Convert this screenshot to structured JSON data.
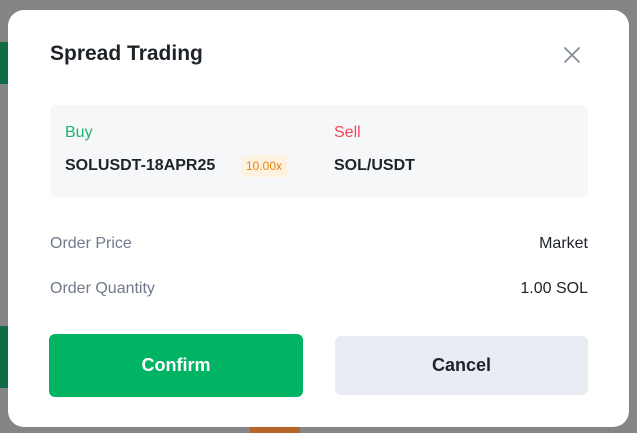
{
  "dialog": {
    "title": "Spread Trading",
    "close_icon": "close-icon",
    "buy": {
      "label": "Buy",
      "symbol": "SOLUSDT-18APR25",
      "leverage": "10.00x"
    },
    "sell": {
      "label": "Sell",
      "symbol": "SOL/USDT"
    },
    "rows": [
      {
        "label": "Order Price",
        "value": "Market"
      },
      {
        "label": "Order Quantity",
        "value": "1.00 SOL"
      }
    ],
    "confirm_label": "Confirm",
    "cancel_label": "Cancel"
  },
  "colors": {
    "buy": "#20b26c",
    "sell": "#f6465d",
    "confirm": "#00b464",
    "badge": "#e8850c"
  }
}
